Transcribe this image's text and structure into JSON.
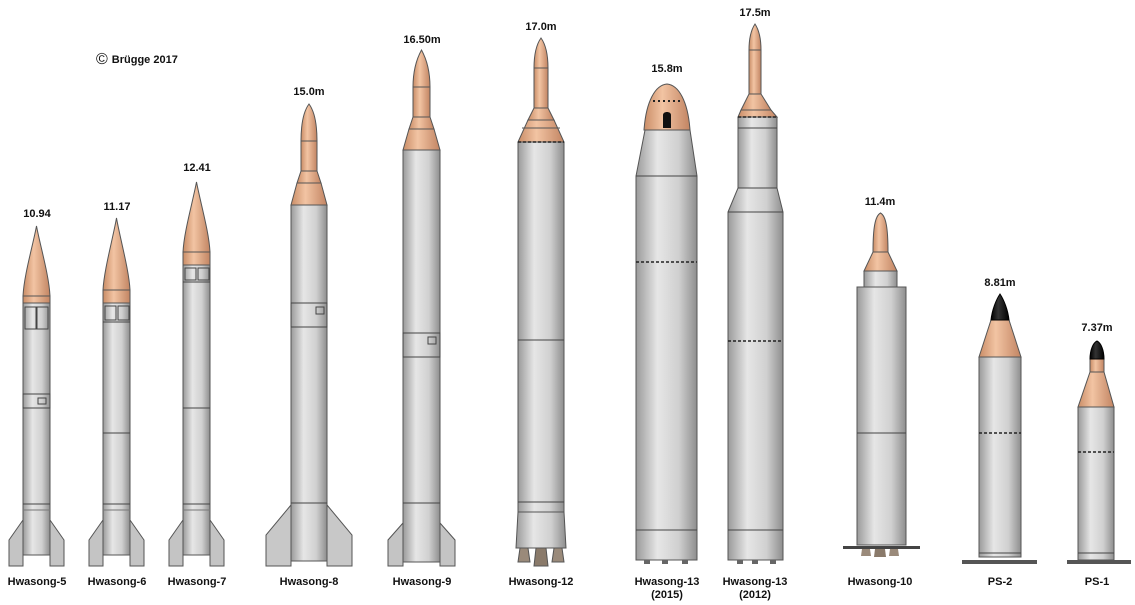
{
  "credit": {
    "symbol": "©",
    "text": "Brügge 2017"
  },
  "colors": {
    "body": "#d2d2d2",
    "nose": "#e8b08a",
    "black": "#111111",
    "outline": "#444444"
  },
  "missiles": [
    {
      "name": "Hwasong-5",
      "length": "10.94"
    },
    {
      "name": "Hwasong-6",
      "length": "11.17"
    },
    {
      "name": "Hwasong-7",
      "length": "12.41"
    },
    {
      "name": "Hwasong-8",
      "length": "15.0m"
    },
    {
      "name": "Hwasong-9",
      "length": "16.50m"
    },
    {
      "name": "Hwasong-12",
      "length": "17.0m"
    },
    {
      "name": "Hwasong-13",
      "sub": "(2015)",
      "length": "15.8m"
    },
    {
      "name": "Hwasong-13",
      "sub": "(2012)",
      "length": "17.5m"
    },
    {
      "name": "Hwasong-10",
      "length": "11.4m"
    },
    {
      "name": "PS-2",
      "length": "8.81m"
    },
    {
      "name": "PS-1",
      "length": "7.37m"
    }
  ]
}
